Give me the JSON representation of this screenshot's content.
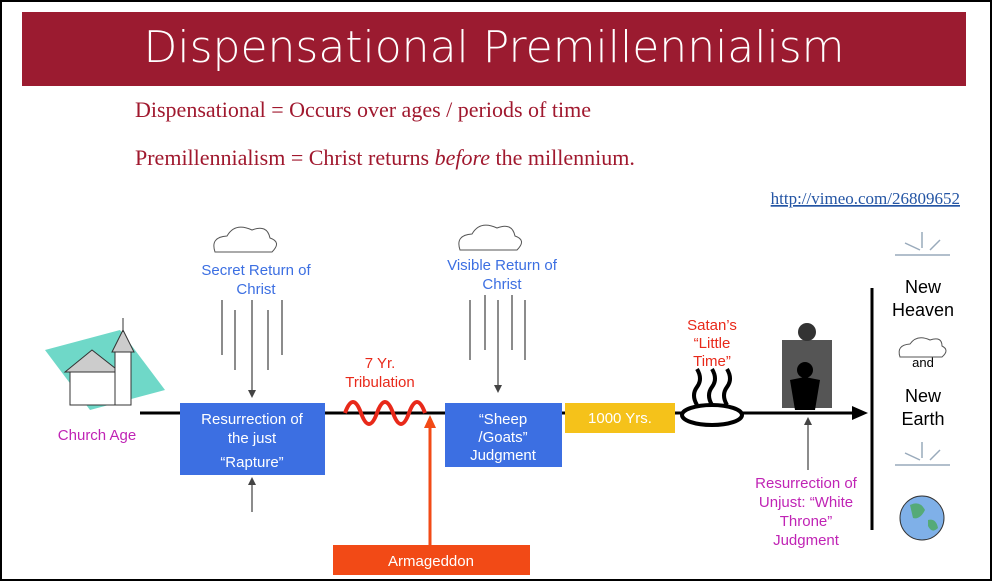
{
  "header": {
    "title": "Dispensational Premillennialism"
  },
  "definitions": {
    "line1": "Dispensational = Occurs over ages / periods of time",
    "line2": {
      "prefix": "Premillennialism = Christ returns ",
      "emphasis": "before",
      "suffix": " the millennium."
    }
  },
  "link": "http://vimeo.com/26809652",
  "nodes": {
    "church_age": "Church Age",
    "secret_return": [
      "Secret Return of",
      "Christ"
    ],
    "rapture": [
      "Resurrection of",
      "the just",
      "“Rapture”"
    ],
    "tribulation": [
      "7 Yr.",
      "Tribulation"
    ],
    "visible_return": [
      "Visible Return of",
      "Christ"
    ],
    "sheep_goats": [
      "“Sheep",
      "/Goats”",
      "Judgment"
    ],
    "millennium": "1000 Yrs.",
    "little_time": [
      "Satan’s",
      "“Little",
      "Time”"
    ],
    "white_throne": [
      "Resurrection of",
      "Unjust: “White",
      "Throne”",
      "Judgment"
    ],
    "new_heaven": [
      "New",
      "Heaven"
    ],
    "and": "and",
    "new_earth": [
      "New",
      "Earth"
    ],
    "armageddon": "Armageddon"
  }
}
